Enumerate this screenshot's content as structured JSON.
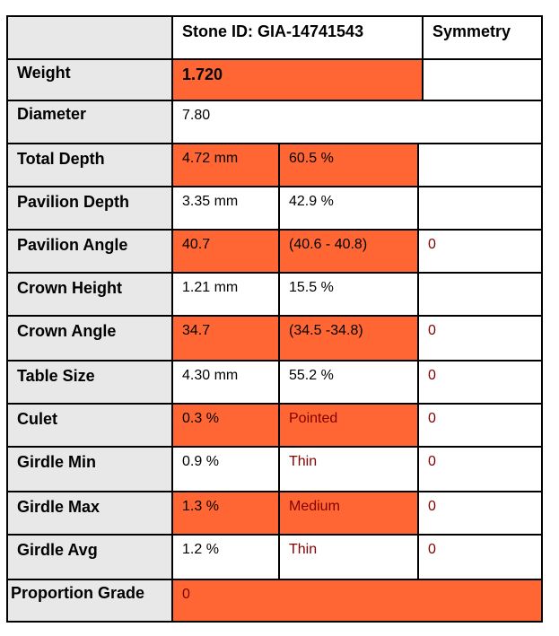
{
  "header": {
    "stone_id_label": "Stone ID: GIA-14741543",
    "symmetry_label": "Symmetry"
  },
  "rows": {
    "weight": {
      "label": "Weight",
      "value": "1.720"
    },
    "diameter": {
      "label": "Diameter",
      "value": "7.80"
    },
    "total_depth": {
      "label": "Total Depth",
      "mm": "4.72 mm",
      "pct": "60.5 %"
    },
    "pavilion_depth": {
      "label": "Pavilion Depth",
      "mm": "3.35 mm",
      "pct": "42.9 %"
    },
    "pavilion_angle": {
      "label": "Pavilion Angle",
      "value": "40.7",
      "range": "(40.6 - 40.8)",
      "sym": "0"
    },
    "crown_height": {
      "label": "Crown Height",
      "mm": "1.21 mm",
      "pct": "15.5 %"
    },
    "crown_angle": {
      "label": "Crown Angle",
      "value": "34.7",
      "range": "(34.5 -34.8)",
      "sym": "0"
    },
    "table_size": {
      "label": "Table Size",
      "mm": "4.30 mm",
      "pct": "55.2 %",
      "sym": "0"
    },
    "culet": {
      "label": "Culet",
      "value": "0.3 %",
      "desc": "Pointed",
      "sym": "0"
    },
    "girdle_min": {
      "label": "Girdle Min",
      "value": "0.9 %",
      "desc": "Thin",
      "sym": "0"
    },
    "girdle_max": {
      "label": "Girdle Max",
      "value": "1.3 %",
      "desc": "Medium",
      "sym": "0"
    },
    "girdle_avg": {
      "label": "Girdle Avg",
      "value": "1.2 %",
      "desc": "Thin",
      "sym": "0"
    },
    "proportion_grade": {
      "label": "Proportion Grade",
      "value": "0"
    }
  },
  "colors": {
    "highlight": "#ff6633",
    "label_bg": "#e8e8e8",
    "dark_red_text": "#800000"
  }
}
